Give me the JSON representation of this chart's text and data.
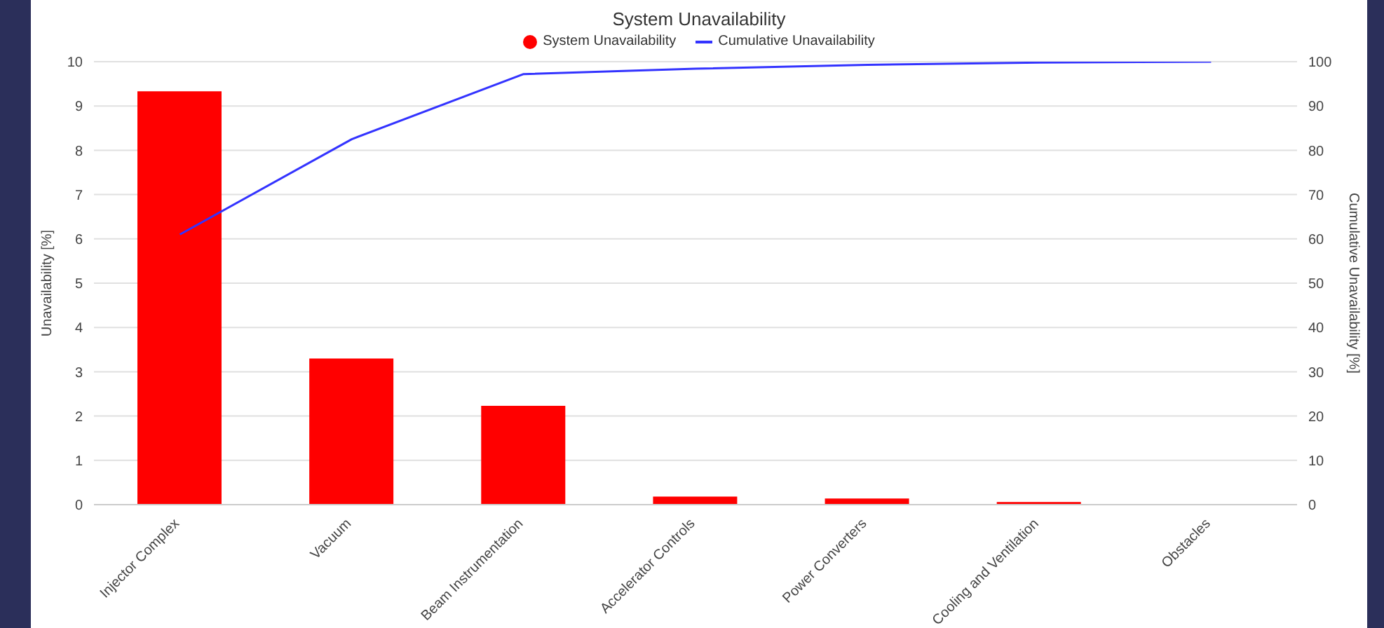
{
  "chart_data": {
    "type": "bar",
    "title": "System Unavailability",
    "ylabel": "Unavailability [%]",
    "y2label": "Cumulative Unavailability [%]",
    "categories": [
      "Injector Complex",
      "Vacuum",
      "Beam Instrumentation",
      "Accelerator Controls",
      "Power Converters",
      "Cooling and Ventilation",
      "Obstacles"
    ],
    "series": [
      {
        "name": "System Unavailability",
        "color": "#ff0000",
        "values": [
          9.33,
          3.3,
          2.23,
          0.18,
          0.14,
          0.06,
          0
        ]
      },
      {
        "name": "Cumulative Unavailability",
        "type": "line",
        "axis": "y2",
        "color": "#3333ff",
        "values": [
          61,
          82.5,
          97.2,
          98.4,
          99.3,
          99.8,
          100
        ]
      }
    ],
    "ylim": [
      0,
      10
    ],
    "yticks": [
      0,
      1,
      2,
      3,
      4,
      5,
      6,
      7,
      8,
      9,
      10
    ],
    "y2lim": [
      0,
      100
    ],
    "y2ticks": [
      0,
      10,
      20,
      30,
      40,
      50,
      60,
      70,
      80,
      90,
      100
    ],
    "grid": "y",
    "legend": "top",
    "marker": "none"
  }
}
